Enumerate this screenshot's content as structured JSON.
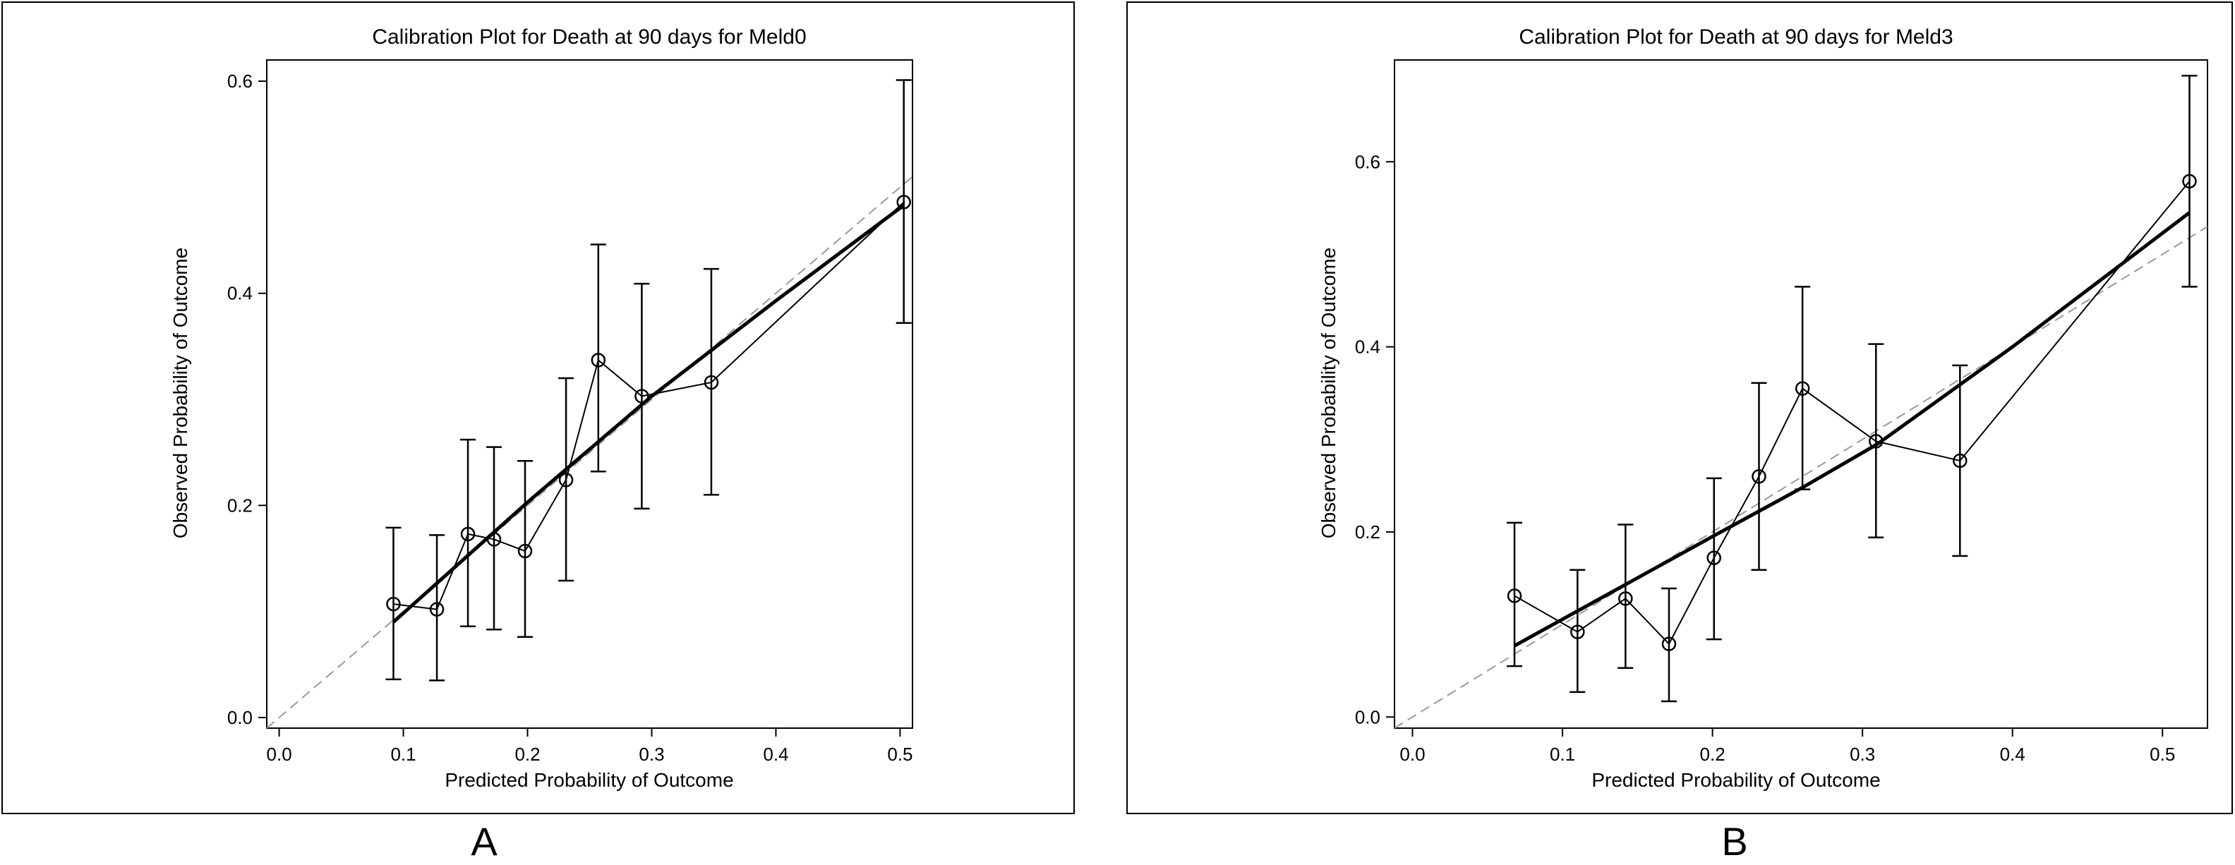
{
  "chart_data": [
    {
      "type": "line",
      "panel_label": "A",
      "title": "Calibration Plot for Death at 90 days for Meld0",
      "xlabel": "Predicted Probability of Outcome",
      "ylabel": "Observed Probability of Outcome",
      "xlim": [
        -0.01,
        0.51
      ],
      "ylim": [
        -0.01,
        0.62
      ],
      "xticks": [
        "0.0",
        "0.1",
        "0.2",
        "0.3",
        "0.4",
        "0.5"
      ],
      "yticks": [
        "0.0",
        "0.2",
        "0.4",
        "0.6"
      ],
      "grid": false,
      "points": {
        "x": [
          0.092,
          0.127,
          0.152,
          0.173,
          0.198,
          0.231,
          0.257,
          0.292,
          0.348,
          0.503
        ],
        "y": [
          0.107,
          0.102,
          0.173,
          0.168,
          0.157,
          0.224,
          0.337,
          0.303,
          0.316,
          0.486
        ],
        "lower": [
          0.036,
          0.035,
          0.086,
          0.083,
          0.076,
          0.129,
          0.232,
          0.197,
          0.21,
          0.372
        ],
        "upper": [
          0.179,
          0.172,
          0.262,
          0.255,
          0.242,
          0.32,
          0.446,
          0.409,
          0.423,
          0.601
        ]
      },
      "smooth": {
        "x": [
          0.092,
          0.2,
          0.3,
          0.4,
          0.503
        ],
        "y": [
          0.09,
          0.203,
          0.303,
          0.393,
          0.483
        ]
      },
      "reference_line": "y = x (dashed, grey)"
    },
    {
      "type": "line",
      "panel_label": "B",
      "title": "Calibration Plot for Death at 90 days for Meld3",
      "xlabel": "Predicted Probability of Outcome",
      "ylabel": "Observed Probability of Outcome",
      "xlim": [
        -0.012,
        0.53
      ],
      "ylim": [
        -0.012,
        0.71
      ],
      "xticks": [
        "0.0",
        "0.1",
        "0.2",
        "0.3",
        "0.4",
        "0.5"
      ],
      "yticks": [
        "0.0",
        "0.2",
        "0.4",
        "0.6"
      ],
      "grid": false,
      "points": {
        "x": [
          0.068,
          0.11,
          0.142,
          0.171,
          0.201,
          0.231,
          0.26,
          0.309,
          0.365,
          0.518
        ],
        "y": [
          0.131,
          0.092,
          0.128,
          0.079,
          0.172,
          0.26,
          0.355,
          0.298,
          0.277,
          0.579
        ],
        "lower": [
          0.055,
          0.027,
          0.053,
          0.017,
          0.084,
          0.159,
          0.246,
          0.194,
          0.174,
          0.465
        ],
        "upper": [
          0.21,
          0.159,
          0.208,
          0.139,
          0.258,
          0.361,
          0.465,
          0.403,
          0.38,
          0.693
        ]
      },
      "smooth": {
        "x": [
          0.068,
          0.2,
          0.26,
          0.31,
          0.4,
          0.518
        ],
        "y": [
          0.077,
          0.195,
          0.248,
          0.295,
          0.4,
          0.545
        ]
      },
      "reference_line": "y = x (dashed, grey)"
    }
  ],
  "colors": {
    "ink": "#000000",
    "reference": "#9a9a9a"
  }
}
